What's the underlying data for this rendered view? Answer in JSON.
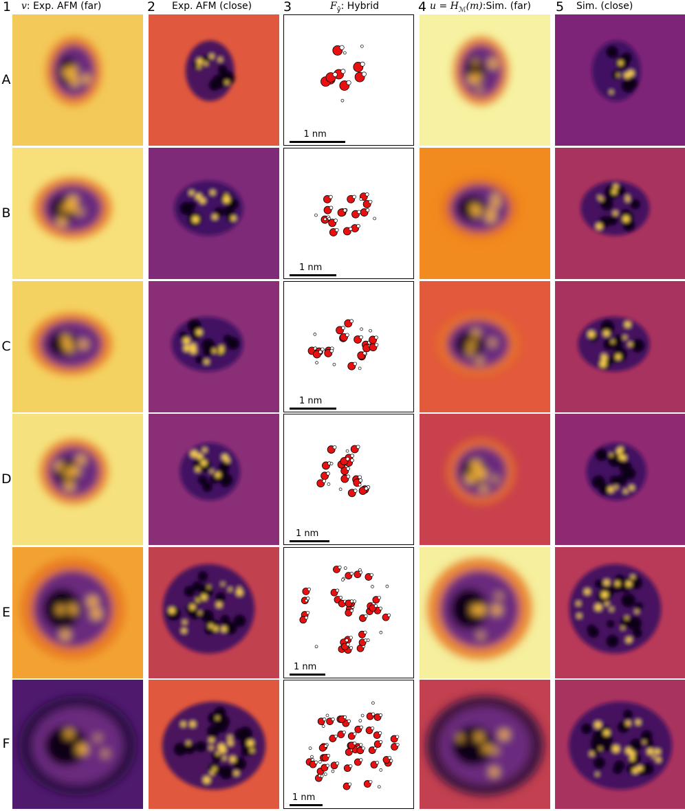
{
  "columns": [
    {
      "num": "1",
      "title_prefix": "v",
      "title": ": Exp. AFM (far)"
    },
    {
      "num": "2",
      "title": "Exp. AFM (close)"
    },
    {
      "num": "3",
      "title_prefix": "F",
      "title_sub": "ŷ",
      "title": ": Hybrid"
    },
    {
      "num": "4",
      "title_prefix": "u = H",
      "title_sub": "ℳ",
      "title_mid": "(m)",
      "title": ":Sim. (far)"
    },
    {
      "num": "5",
      "title": "Sim. (close)"
    }
  ],
  "rows": [
    "A",
    "B",
    "C",
    "D",
    "E",
    "F"
  ],
  "scalebar_label": "1 nm",
  "colormap": "inferno",
  "colors": {
    "far_exp_bg": [
      "#f3c95a",
      "#f7e07a",
      "#f4d262",
      "#f5e27e",
      "#f2a233",
      "#4f1a6e"
    ],
    "close_exp_bg": [
      "#e0583d",
      "#7e2a78",
      "#8a2f77",
      "#8a2f77",
      "#c2414f",
      "#e0583d"
    ],
    "far_sim_bg": [
      "#f6f2a2",
      "#f18a1f",
      "#e25a3b",
      "#c9414d",
      "#f5ef9e",
      "#c2404f"
    ],
    "close_sim_bg": [
      "#7e2478",
      "#a9335f",
      "#a9335f",
      "#8f2a72",
      "#b83a58",
      "#a9335f"
    ],
    "oxygen": "#e81010",
    "hydrogen": "#ffffff"
  }
}
